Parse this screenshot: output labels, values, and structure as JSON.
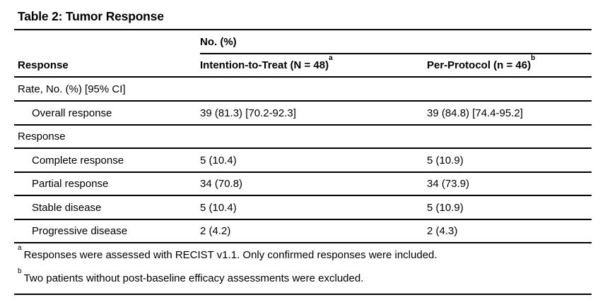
{
  "title": "Table 2: Tumor Response",
  "table": {
    "spanner_label": "No. (%)",
    "columns": [
      {
        "label": "Response"
      },
      {
        "label": "Intention-to-Treat (N = 48)",
        "sup": "a"
      },
      {
        "label": "Per-Protocol (n = 46)",
        "sup": "b"
      }
    ],
    "rows": [
      {
        "type": "section",
        "label": "Rate, No. (%) [95% CI]"
      },
      {
        "type": "data",
        "label": "Overall response",
        "itt": "39 (81.3) [70.2-92.3]",
        "pp": "39 (84.8) [74.4-95.2]"
      },
      {
        "type": "section",
        "label": "Response"
      },
      {
        "type": "data",
        "label": "Complete response",
        "itt": "5 (10.4)",
        "pp": "5 (10.9)"
      },
      {
        "type": "data",
        "label": "Partial response",
        "itt": "34 (70.8)",
        "pp": "34 (73.9)"
      },
      {
        "type": "data",
        "label": "Stable disease",
        "itt": "5 (10.4)",
        "pp": "5 (10.9)"
      },
      {
        "type": "data",
        "label": "Progressive disease",
        "itt": "2 (4.2)",
        "pp": "2 (4.3)"
      }
    ]
  },
  "footnotes": [
    {
      "marker": "a",
      "text": "Responses were assessed with RECIST v1.1. Only confirmed responses were included."
    },
    {
      "marker": "b",
      "text": "Two patients without post-baseline efficacy assessments were excluded."
    }
  ],
  "colors": {
    "text": "#000000",
    "rule": "#000000",
    "background": "#ffffff"
  }
}
